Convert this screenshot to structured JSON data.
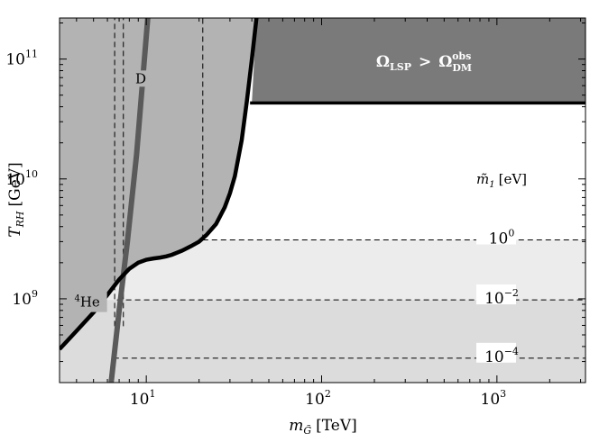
{
  "chart_data": {
    "type": "line",
    "xlabel": "m_G̃ [TeV]",
    "ylabel": "T_RH [GeV]",
    "x_scale": "log",
    "y_scale": "log",
    "xlim": [
      3.2,
      3200
    ],
    "ylim": [
      200000000.0,
      220000000000.0
    ],
    "x_ticks": [
      {
        "value": 10,
        "label_base": "10",
        "label_exp": "1"
      },
      {
        "value": 100,
        "label_base": "10",
        "label_exp": "2"
      },
      {
        "value": 1000,
        "label_base": "10",
        "label_exp": "3"
      }
    ],
    "y_ticks": [
      {
        "value": 1000000000.0,
        "label_base": "10",
        "label_exp": "9"
      },
      {
        "value": 10000000000.0,
        "label_base": "10",
        "label_exp": "10"
      },
      {
        "value": 100000000000.0,
        "label_base": "10",
        "label_exp": "11"
      }
    ],
    "grid": false,
    "regions": {
      "overabundance": {
        "label_main": "Ω",
        "label_main_sub": "LSP",
        "label_op": ">",
        "label_rhs": "Ω",
        "label_rhs_sub": "DM",
        "label_rhs_sup": "obs",
        "color": "#7a7a7a",
        "boundary_T": 43000000000.0,
        "m_start": 40
      },
      "bbn_excluded_color": "#b3b3b3",
      "band_colors": [
        "#dcdcdc",
        "#ececec",
        "#ffffff"
      ],
      "band_limits_T": [
        320000000.0,
        980000000.0,
        3100000000.0
      ]
    },
    "series": [
      {
        "name": "⁴He",
        "color": "#000000",
        "points": [
          [
            3.2,
            380000000.0
          ],
          [
            4.0,
            540000000.0
          ],
          [
            5.0,
            770000000.0
          ],
          [
            6.0,
            1080000000.0
          ],
          [
            7.0,
            1450000000.0
          ],
          [
            8.0,
            1780000000.0
          ],
          [
            9.0,
            2000000000.0
          ],
          [
            10.0,
            2120000000.0
          ],
          [
            11.0,
            2170000000.0
          ],
          [
            12.0,
            2210000000.0
          ],
          [
            13.0,
            2260000000.0
          ],
          [
            14.0,
            2330000000.0
          ],
          [
            16.0,
            2520000000.0
          ],
          [
            18.0,
            2750000000.0
          ],
          [
            20.0,
            3000000000.0
          ],
          [
            22.0,
            3400000000.0
          ],
          [
            25.0,
            4200000000.0
          ],
          [
            28.0,
            5800000000.0
          ],
          [
            30.0,
            7600000000.0
          ],
          [
            32.0,
            10500000000.0
          ],
          [
            35.0,
            21000000000.0
          ],
          [
            37.5,
            45000000000.0
          ],
          [
            40.0,
            100000000000.0
          ],
          [
            42.5,
            220000000000.0
          ]
        ]
      },
      {
        "name": "D",
        "color": "#5a5a5a",
        "points": [
          [
            6.3,
            200000000.0
          ],
          [
            7.0,
            800000000.0
          ],
          [
            7.8,
            3000000000.0
          ],
          [
            8.8,
            16000000000.0
          ],
          [
            10.2,
            220000000000.0
          ]
        ]
      }
    ],
    "dashed_lines": [
      {
        "kind": "horizontal",
        "T": 3100000000.0,
        "m_from": 21,
        "m_to": 3200,
        "label_base": "10",
        "label_exp": "0"
      },
      {
        "kind": "horizontal",
        "T": 980000000.0,
        "m_from": 6.8,
        "m_to": 3200,
        "label_base": "10",
        "label_exp": "−2"
      },
      {
        "kind": "horizontal",
        "T": 320000000.0,
        "m_from": 6.5,
        "m_to": 3200,
        "label_base": "10",
        "label_exp": "−4"
      },
      {
        "kind": "vertical",
        "m": 6.6,
        "T_from": 590000000.0,
        "T_to": 220000000000.0
      },
      {
        "kind": "vertical",
        "m": 7.4,
        "T_from": 590000000.0,
        "T_to": 220000000000.0
      },
      {
        "kind": "vertical",
        "m": 21,
        "T_from": 3100000000.0,
        "T_to": 220000000000.0
      }
    ],
    "m1_legend": {
      "symbol": "m̃",
      "sub": "1",
      "unit": "[eV]"
    },
    "annotations": [
      {
        "text": "D",
        "m": 9.3,
        "T": 63000000000.0
      },
      {
        "text_sup": "4",
        "text": "He",
        "m": 4.6,
        "T": 860000000.0
      }
    ]
  }
}
